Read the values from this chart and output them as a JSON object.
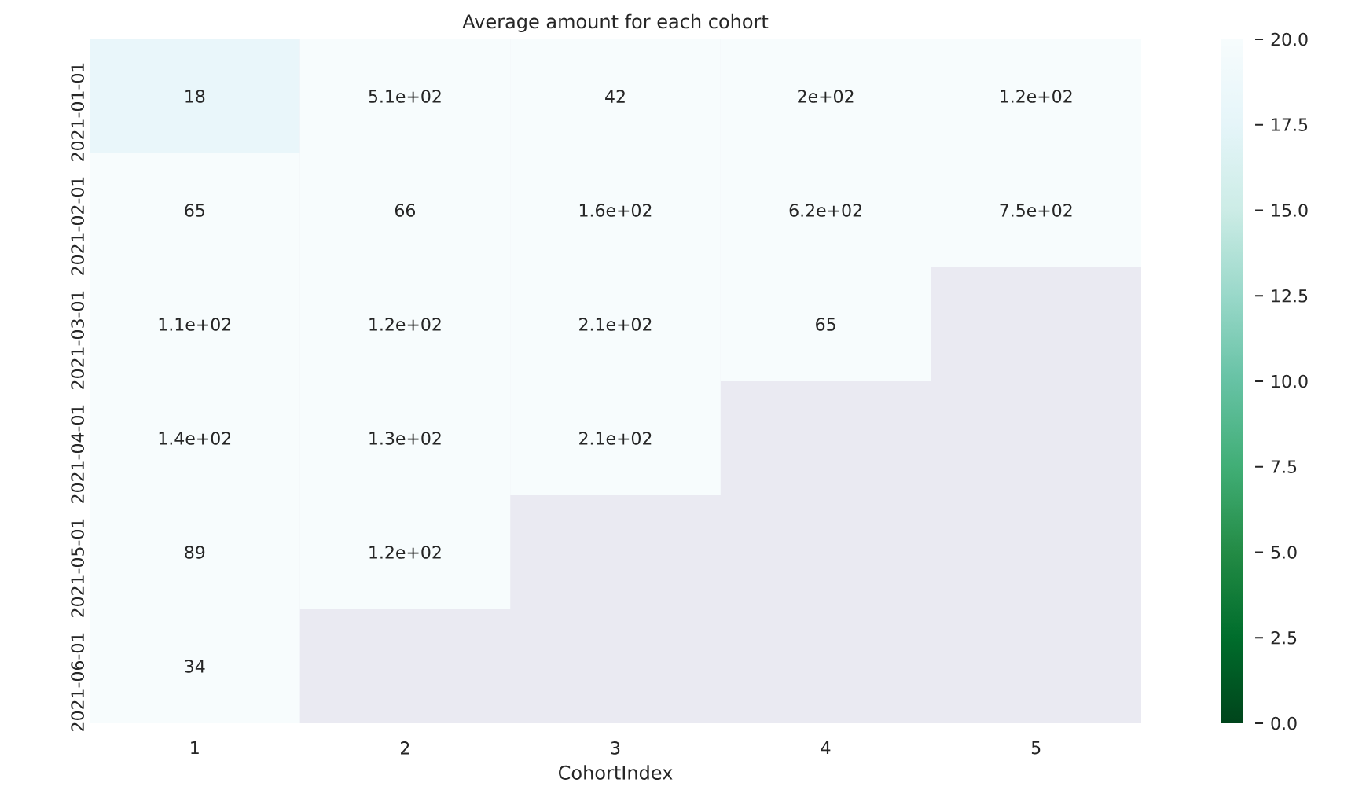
{
  "chart_data": {
    "type": "heatmap",
    "title": "Average amount for each cohort",
    "xlabel": "CohortIndex",
    "categories": [
      "1",
      "2",
      "3",
      "4",
      "5"
    ],
    "y_categories": [
      "2021-01-01",
      "2021-02-01",
      "2021-03-01",
      "2021-04-01",
      "2021-05-01",
      "2021-06-01"
    ],
    "cells": [
      [
        18,
        510,
        42,
        200,
        120
      ],
      [
        65,
        66,
        160,
        620,
        750
      ],
      [
        110,
        120,
        210,
        65,
        null
      ],
      [
        140,
        130,
        210,
        null,
        null
      ],
      [
        89,
        120,
        null,
        null,
        null
      ],
      [
        34,
        null,
        null,
        null,
        null
      ]
    ],
    "cell_labels": [
      [
        "18",
        "5.1e+02",
        "42",
        "2e+02",
        "1.2e+02"
      ],
      [
        "65",
        "66",
        "1.6e+02",
        "6.2e+02",
        "7.5e+02"
      ],
      [
        "1.1e+02",
        "1.2e+02",
        "2.1e+02",
        "65",
        null
      ],
      [
        "1.4e+02",
        "1.3e+02",
        "2.1e+02",
        null,
        null
      ],
      [
        "89",
        "1.2e+02",
        null,
        null,
        null
      ],
      [
        "34",
        null,
        null,
        null,
        null
      ]
    ],
    "clim": [
      0,
      20
    ],
    "cticks": [
      {
        "value": 0,
        "label": "0.0"
      },
      2.5,
      {
        "value": 5,
        "label": "5.0"
      },
      7.5,
      {
        "value": 10,
        "label": "10.0"
      },
      12.5,
      {
        "value": 15,
        "label": "15.0"
      },
      17.5,
      {
        "value": 20,
        "label": "20.0"
      }
    ]
  }
}
